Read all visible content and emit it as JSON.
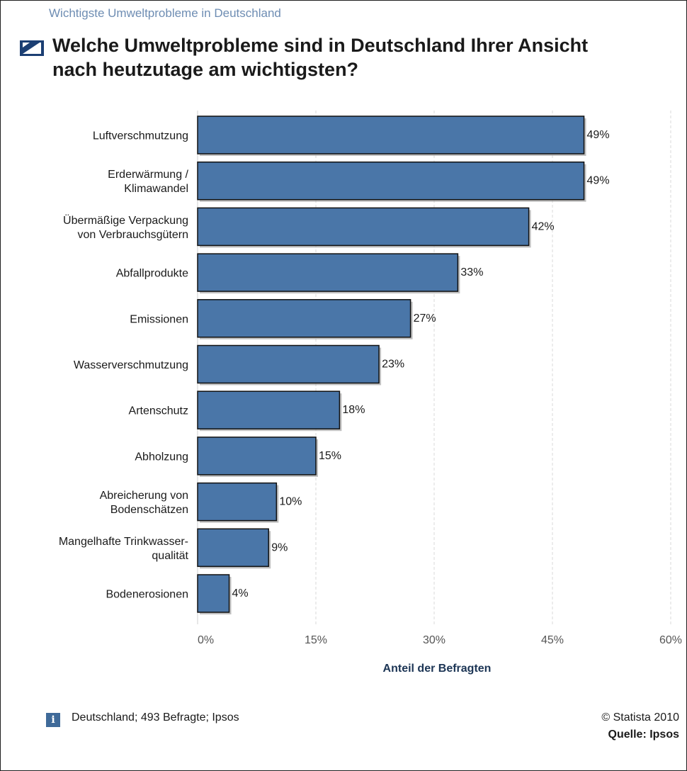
{
  "header": {
    "subtitle": "Wichtigste Umweltprobleme in Deutschland",
    "title_line1": "Welche Umweltprobleme sind in Deutschland Ihrer Ansicht",
    "title_line2": "nach heutzutage am wichtigsten?"
  },
  "chart_data": {
    "type": "bar",
    "orientation": "horizontal",
    "categories": [
      [
        "Luftverschmutzung"
      ],
      [
        "Erderwärmung /",
        "Klimawandel"
      ],
      [
        "Übermäßige Verpackung",
        "von Verbrauchsgütern"
      ],
      [
        "Abfallprodukte"
      ],
      [
        "Emissionen"
      ],
      [
        "Wasserverschmutzung"
      ],
      [
        "Artenschutz"
      ],
      [
        "Abholzung"
      ],
      [
        "Abreicherung von",
        "Bodenschätzen"
      ],
      [
        "Mangelhafte Trinkwasser-",
        "qualität"
      ],
      [
        "Bodenerosionen"
      ]
    ],
    "values": [
      49,
      49,
      42,
      33,
      27,
      23,
      18,
      15,
      10,
      9,
      4
    ],
    "value_labels": [
      "49%",
      "49%",
      "42%",
      "33%",
      "27%",
      "23%",
      "18%",
      "15%",
      "10%",
      "9%",
      "4%"
    ],
    "xlim": [
      0,
      60
    ],
    "xticks": [
      0,
      15,
      30,
      45,
      60
    ],
    "xtick_labels": [
      "0%",
      "15%",
      "30%",
      "45%",
      "60%"
    ],
    "xlabel": "Anteil der Befragten",
    "grid": true,
    "bar_color": "#4a76a8",
    "grid_color": "#d9d9d9"
  },
  "footer": {
    "info_icon": "i",
    "note": "Deutschland; 493 Befragte; Ipsos",
    "copyright": "© Statista 2010",
    "source": "Quelle: Ipsos"
  }
}
